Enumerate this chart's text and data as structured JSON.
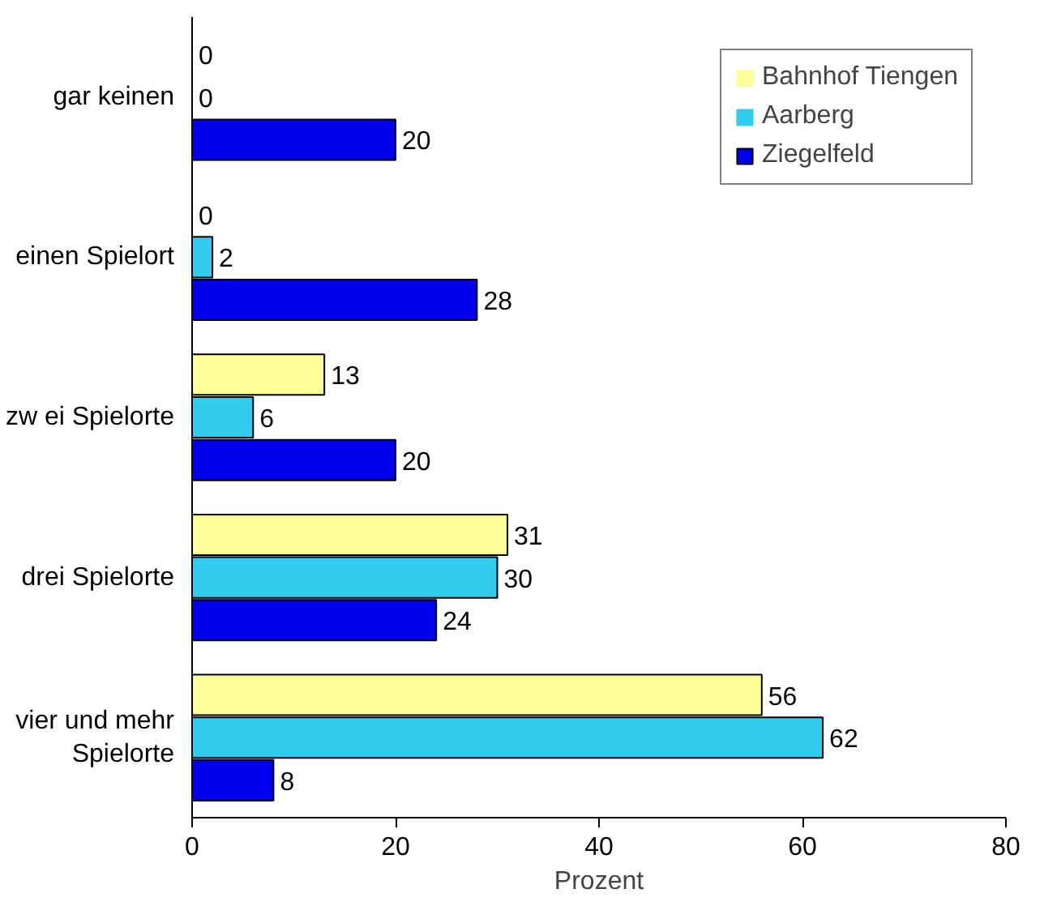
{
  "chart_data": {
    "type": "bar",
    "orientation": "horizontal",
    "xlabel": "Prozent",
    "categories": [
      "gar keinen",
      "einen Spielort",
      "zw ei Spielorte",
      "drei Spielorte",
      "vier und mehr Spielorte"
    ],
    "series": [
      {
        "name": "Bahnhof Tiengen",
        "color": "#ffff99",
        "values": [
          0,
          0,
          13,
          31,
          56
        ]
      },
      {
        "name": "Aarberg",
        "color": "#33ccee",
        "values": [
          0,
          2,
          6,
          30,
          62
        ]
      },
      {
        "name": "Ziegelfeld",
        "color": "#0000ee",
        "values": [
          20,
          28,
          20,
          24,
          8
        ]
      }
    ],
    "xlim": [
      0,
      80
    ],
    "xticks": [
      0,
      20,
      40,
      60,
      80
    ],
    "grid": false,
    "legend": "top right",
    "data_labels": true
  }
}
